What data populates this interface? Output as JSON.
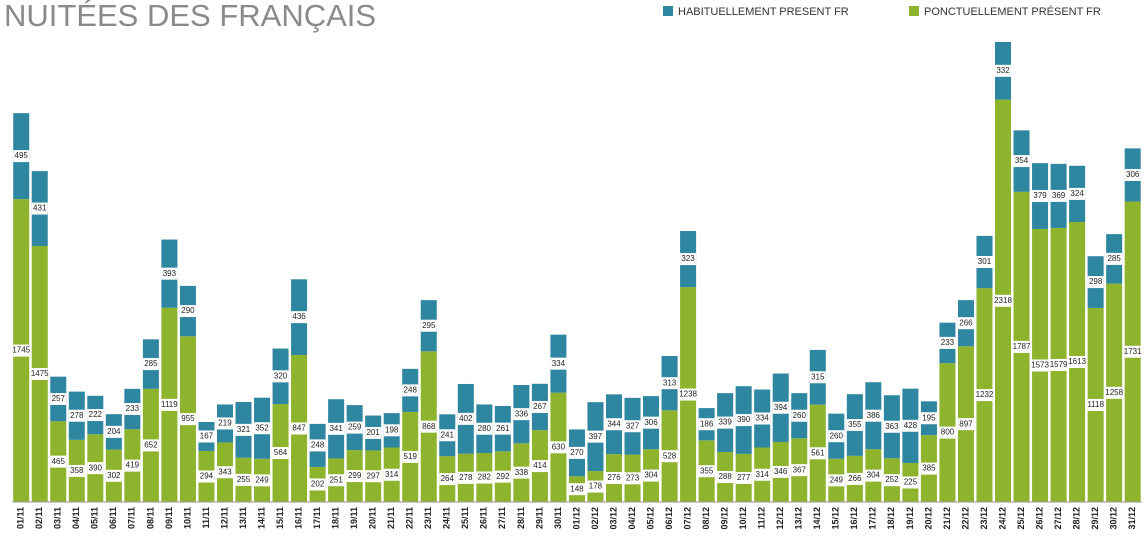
{
  "chart_data": {
    "type": "bar",
    "stacked": true,
    "title": "NUITÉES DES FRANÇAIS",
    "categories": [
      "01/11",
      "02/11",
      "03/11",
      "04/11",
      "05/11",
      "06/11",
      "07/11",
      "08/11",
      "09/11",
      "10/11",
      "11/11",
      "12/11",
      "13/11",
      "14/11",
      "15/11",
      "16/11",
      "17/11",
      "18/11",
      "19/11",
      "20/11",
      "21/11",
      "22/11",
      "23/11",
      "24/11",
      "25/11",
      "26/11",
      "27/11",
      "28/11",
      "29/11",
      "30/11",
      "01/12",
      "02/12",
      "03/12",
      "04/12",
      "05/12",
      "06/12",
      "07/12",
      "08/12",
      "09/12",
      "10/12",
      "11/12",
      "12/12",
      "13/12",
      "14/12",
      "15/12",
      "16/12",
      "17/12",
      "18/12",
      "19/12",
      "20/12",
      "21/12",
      "22/12",
      "23/12",
      "24/12",
      "25/12",
      "26/12",
      "27/12",
      "28/12",
      "29/12",
      "30/12",
      "31/12"
    ],
    "series": [
      {
        "name": "PONCTUELLEMENT PRÉSENT FR",
        "color": "#8db42c",
        "values": [
          1745,
          1475,
          465,
          358,
          390,
          302,
          419,
          652,
          1119,
          955,
          294,
          343,
          255,
          249,
          564,
          847,
          202,
          251,
          299,
          297,
          314,
          519,
          868,
          264,
          278,
          282,
          292,
          338,
          414,
          630,
          148,
          178,
          276,
          273,
          304,
          528,
          1238,
          355,
          288,
          277,
          314,
          346,
          367,
          561,
          249,
          266,
          304,
          252,
          225,
          385,
          800,
          897,
          1232,
          2318,
          1787,
          1573,
          1579,
          1613,
          1118,
          1258,
          1731
        ]
      },
      {
        "name": "HABITUELLEMENT PRESENT FR",
        "color": "#2e86a1",
        "values": [
          495,
          431,
          257,
          278,
          222,
          204,
          233,
          285,
          393,
          290,
          167,
          219,
          321,
          352,
          320,
          436,
          248,
          341,
          259,
          201,
          198,
          248,
          295,
          241,
          402,
          280,
          261,
          336,
          267,
          334,
          270,
          397,
          344,
          327,
          306,
          313,
          323,
          186,
          339,
          390,
          334,
          394,
          260,
          315,
          260,
          355,
          386,
          363,
          428,
          195,
          233,
          266,
          301,
          332,
          354,
          379,
          369,
          324,
          298,
          285,
          306
        ]
      }
    ]
  }
}
